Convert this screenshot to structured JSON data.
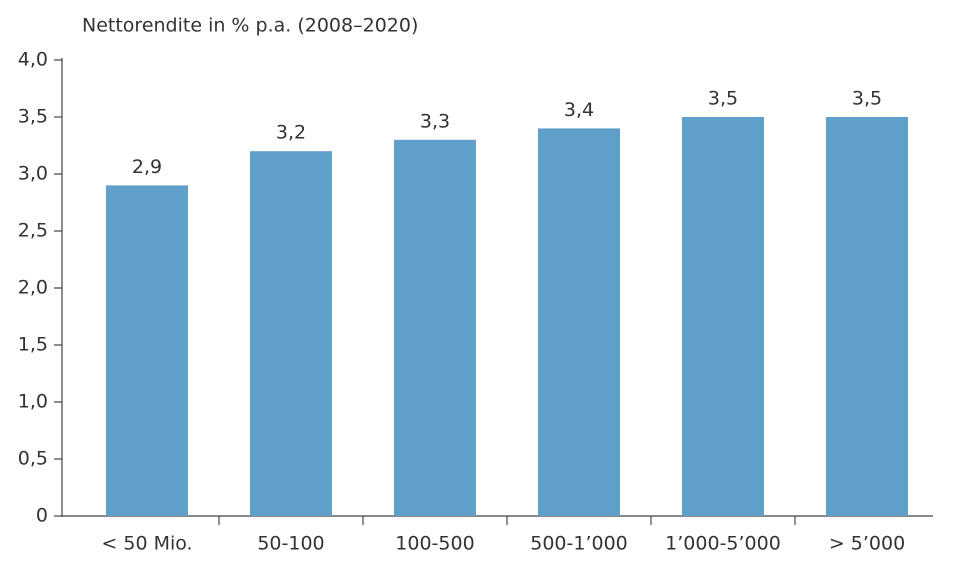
{
  "chart_data": {
    "type": "bar",
    "title": "Nettorendite in % p.a. (2008–2020)",
    "categories": [
      "< 50 Mio.",
      "50-100",
      "100-500",
      "500-1’000",
      "1’000-5’000",
      "> 5’000"
    ],
    "values": [
      2.9,
      3.2,
      3.3,
      3.4,
      3.5,
      3.5
    ],
    "value_labels": [
      "2,9",
      "3,2",
      "3,3",
      "3,4",
      "3,5",
      "3,5"
    ],
    "color": "#5f9fca",
    "ylim": [
      0,
      4
    ],
    "yticks": [
      0,
      {
        "value": 0.5,
        "label": "0,5"
      },
      {
        "value": 1,
        "label": "1,0"
      },
      {
        "value": 1.5,
        "label": "1,5"
      },
      {
        "value": 2,
        "label": "2,0"
      },
      {
        "value": 2.5,
        "label": "2,5"
      },
      {
        "value": 3,
        "label": "3,0"
      },
      {
        "value": 3.5,
        "label": "3,5"
      },
      {
        "value": 4,
        "label": "4,0"
      }
    ],
    "grid": false
  }
}
